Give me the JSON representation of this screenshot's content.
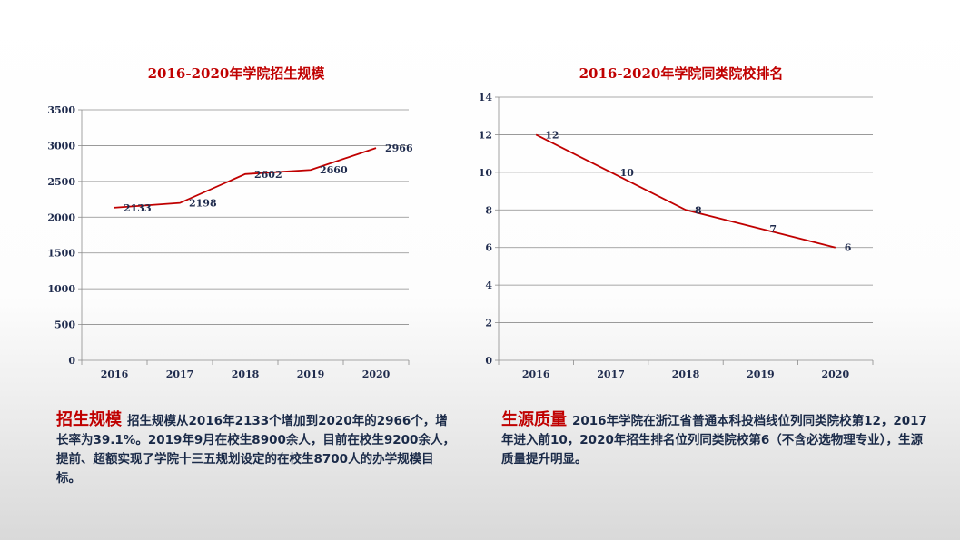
{
  "chart_data": [
    {
      "type": "line",
      "title": "2016-2020年学院招生规模",
      "categories": [
        "2016",
        "2017",
        "2018",
        "2019",
        "2020"
      ],
      "series": [
        {
          "values": [
            2133,
            2198,
            2602,
            2660,
            2966
          ],
          "labels": [
            "2133",
            "2198",
            "2602",
            "2660",
            "2966"
          ]
        }
      ],
      "ylim": [
        0,
        3500
      ],
      "yticks": [
        "0",
        "500",
        "1000",
        "1500",
        "2000",
        "2500",
        "3000",
        "3500"
      ],
      "ytick_values": [
        0,
        500,
        1000,
        1500,
        2000,
        2500,
        3000,
        3500
      ],
      "grid": true,
      "line_color": "#c00000"
    },
    {
      "type": "line",
      "title": "2016-2020年学院同类院校排名",
      "categories": [
        "2016",
        "2017",
        "2018",
        "2019",
        "2020"
      ],
      "series": [
        {
          "values": [
            12,
            10,
            8,
            7,
            6
          ],
          "labels": [
            "12",
            "10",
            "8",
            "7",
            "6"
          ]
        }
      ],
      "ylim": [
        0,
        14
      ],
      "yticks": [
        "0",
        "2",
        "4",
        "6",
        "8",
        "10",
        "12",
        "14"
      ],
      "ytick_values": [
        0,
        2,
        4,
        6,
        8,
        10,
        12,
        14
      ],
      "grid": true,
      "line_color": "#c00000"
    }
  ],
  "descriptions": {
    "left": {
      "heading": "招生规模",
      "text": "招生规模从2016年2133个增加到2020年的2966个，增长率为39.1%。2019年9月在校生8900余人，目前在校生9200余人，提前、超额实现了学院十三五规划设定的在校生8700人的办学规模目标。"
    },
    "right": {
      "heading": "生源质量",
      "text": "2016年学院在浙江省普通本科投档线位列同类院校第12，2017年进入前10，2020年招生排名位列同类院校第6（不含必选物理专业），生源质量提升明显。"
    }
  }
}
